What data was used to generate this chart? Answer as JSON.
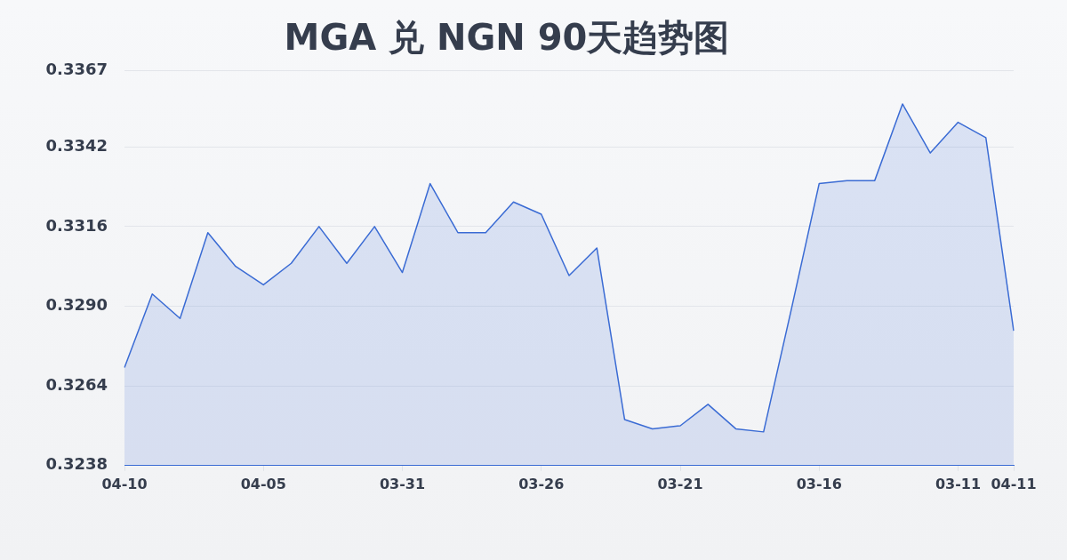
{
  "chart_data": {
    "type": "area",
    "title": "MGA 兑 NGN 90天趋势图",
    "categories": [
      "04-10",
      null,
      null,
      null,
      null,
      "04-05",
      null,
      null,
      null,
      null,
      "03-31",
      null,
      null,
      null,
      null,
      "03-26",
      null,
      null,
      null,
      null,
      "03-21",
      null,
      null,
      null,
      null,
      "03-16",
      null,
      null,
      null,
      null,
      "03-11",
      null,
      "04-11"
    ],
    "series": [
      {
        "color": "#3a6bd4",
        "values": [
          0.327,
          0.3294,
          0.3286,
          0.3314,
          0.3303,
          0.3297,
          0.3304,
          0.3316,
          0.3304,
          0.3316,
          0.3301,
          0.333,
          0.3314,
          0.3314,
          0.3324,
          0.332,
          0.33,
          0.3309,
          0.3253,
          0.325,
          0.3251,
          0.3258,
          0.325,
          0.3249,
          0.3289,
          0.333,
          0.3331,
          0.3331,
          0.3356,
          0.334,
          0.335,
          0.3345,
          0.3282
        ]
      }
    ],
    "ylim": [
      0.3238,
      0.3367
    ],
    "yticks": [
      0.3238,
      0.3264,
      {
        "value": 0.329,
        "label": "0.3290"
      },
      0.3316,
      0.3342,
      0.3367
    ],
    "grid": "y"
  }
}
